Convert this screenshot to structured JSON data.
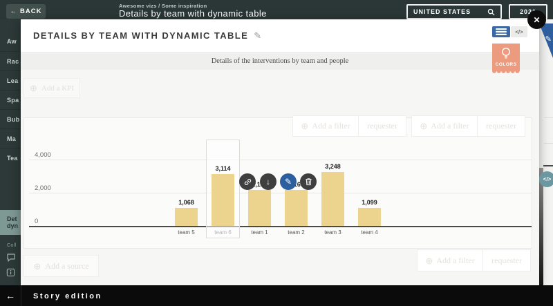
{
  "topbar": {
    "back_label": "BACK",
    "breadcrumb": "Awesome vizs / Some inspiration",
    "page_title": "Details by team with dynamic table",
    "country_filter": "UNITED STATES",
    "year_filter": "2021"
  },
  "sidebar": {
    "items": [
      "Aw",
      "Rac",
      "Lea",
      "Spa",
      "Bub",
      "Ma",
      "Tea"
    ],
    "active_item_line1": "Det",
    "active_item_line2": "dyn",
    "section_label": "Coll"
  },
  "modal": {
    "title": "DETAILS BY TEAM WITH DYNAMIC TABLE",
    "subtitle": "Details of the interventions by team and people",
    "colors_badge_label": "COLORS",
    "add_kpi_label": "Add a KPI",
    "add_source_label": "Add a source",
    "filter_add_label": "Add a filter",
    "filter_value_label": "requester",
    "code_button_label": "</>"
  },
  "chart_data": {
    "type": "bar",
    "categories": [
      "team 5",
      "team 6",
      "team 1",
      "team 2",
      "team 3",
      "team 4"
    ],
    "values": [
      1068,
      3114,
      2183,
      2166,
      3248,
      1099
    ],
    "value_labels": [
      "1,068",
      "3,114",
      "2,183",
      "2,166",
      "3,248",
      "1,099"
    ],
    "yticks": [
      {
        "label": "4,000",
        "value": 4000
      },
      {
        "label": "2,000",
        "value": 2000
      },
      {
        "label": "0",
        "value": 0
      }
    ],
    "ylim": [
      0,
      4500
    ],
    "grid": true,
    "legend": "none",
    "bar_color": "#ecd48e",
    "selected_category": "team 6",
    "xlabel": "",
    "ylabel": ""
  },
  "footer": {
    "label": "Story edition"
  },
  "icons": {
    "back_arrow": "←",
    "footer_arrow": "←",
    "down_arrow": "↓",
    "pencil": "✎",
    "plus": "⊕",
    "close": "✕",
    "code": "</>"
  },
  "colors": {
    "accent_blue": "#3a68a6",
    "badge_salmon": "#ec9b7e",
    "bar_yellow": "#ecd48e",
    "sidebar_dark": "#2c3938",
    "active_item_green": "#7e9894",
    "teal_button": "#6b98a0"
  }
}
